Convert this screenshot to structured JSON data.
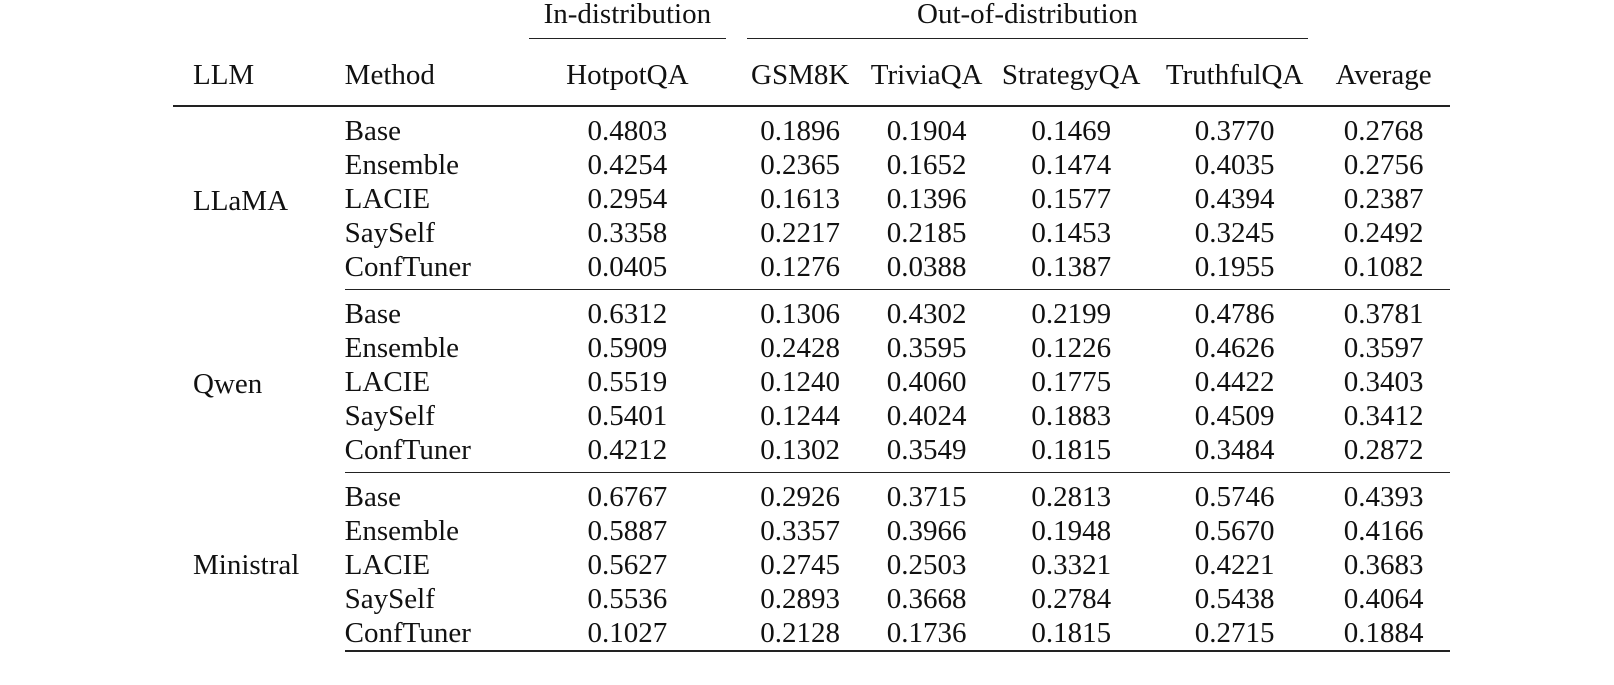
{
  "groups": {
    "in_distribution": "In-distribution",
    "out_of_distribution": "Out-of-distribution"
  },
  "headers": [
    "LLM",
    "Method",
    "HotpotQA",
    "GSM8K",
    "TriviaQA",
    "StrategyQA",
    "TruthfulQA",
    "Average"
  ],
  "blocks": [
    {
      "llm": "LLaMA",
      "rows": [
        {
          "method": "Base",
          "values": [
            "0.4803",
            "0.1896",
            "0.1904",
            "0.1469",
            "0.3770",
            "0.2768"
          ],
          "bold": []
        },
        {
          "method": "Ensemble",
          "values": [
            "0.4254",
            "0.2365",
            "0.1652",
            "0.1474",
            "0.4035",
            "0.2756"
          ],
          "bold": []
        },
        {
          "method": "LACIE",
          "values": [
            "0.2954",
            "0.1613",
            "0.1396",
            "0.1577",
            "0.4394",
            "0.2387"
          ],
          "bold": []
        },
        {
          "method": "SaySelf",
          "values": [
            "0.3358",
            "0.2217",
            "0.2185",
            "0.1453",
            "0.3245",
            "0.2492"
          ],
          "bold": []
        },
        {
          "method": "ConfTuner",
          "values": [
            "0.0405",
            "0.1276",
            "0.0388",
            "0.1387",
            "0.1955",
            "0.1082"
          ],
          "bold": [
            0,
            1,
            2,
            3,
            4,
            5
          ]
        }
      ]
    },
    {
      "llm": "Qwen",
      "rows": [
        {
          "method": "Base",
          "values": [
            "0.6312",
            "0.1306",
            "0.4302",
            "0.2199",
            "0.4786",
            "0.3781"
          ],
          "bold": []
        },
        {
          "method": "Ensemble",
          "values": [
            "0.5909",
            "0.2428",
            "0.3595",
            "0.1226",
            "0.4626",
            "0.3597"
          ],
          "bold": [
            3
          ]
        },
        {
          "method": "LACIE",
          "values": [
            "0.5519",
            "0.1240",
            "0.4060",
            "0.1775",
            "0.4422",
            "0.3403"
          ],
          "bold": [
            1
          ]
        },
        {
          "method": "SaySelf",
          "values": [
            "0.5401",
            "0.1244",
            "0.4024",
            "0.1883",
            "0.4509",
            "0.3412"
          ],
          "bold": []
        },
        {
          "method": "ConfTuner",
          "values": [
            "0.4212",
            "0.1302",
            "0.3549",
            "0.1815",
            "0.3484",
            "0.2872"
          ],
          "bold": [
            0,
            2,
            4,
            5
          ]
        }
      ]
    },
    {
      "llm": "Ministral",
      "rows": [
        {
          "method": "Base",
          "values": [
            "0.6767",
            "0.2926",
            "0.3715",
            "0.2813",
            "0.5746",
            "0.4393"
          ],
          "bold": []
        },
        {
          "method": "Ensemble",
          "values": [
            "0.5887",
            "0.3357",
            "0.3966",
            "0.1948",
            "0.5670",
            "0.4166"
          ],
          "bold": []
        },
        {
          "method": "LACIE",
          "values": [
            "0.5627",
            "0.2745",
            "0.2503",
            "0.3321",
            "0.4221",
            "0.3683"
          ],
          "bold": []
        },
        {
          "method": "SaySelf",
          "values": [
            "0.5536",
            "0.2893",
            "0.3668",
            "0.2784",
            "0.5438",
            "0.4064"
          ],
          "bold": []
        },
        {
          "method": "ConfTuner",
          "values": [
            "0.1027",
            "0.2128",
            "0.1736",
            "0.1815",
            "0.2715",
            "0.1884"
          ],
          "bold": [
            0,
            1,
            2,
            3,
            4,
            5
          ]
        }
      ]
    }
  ]
}
